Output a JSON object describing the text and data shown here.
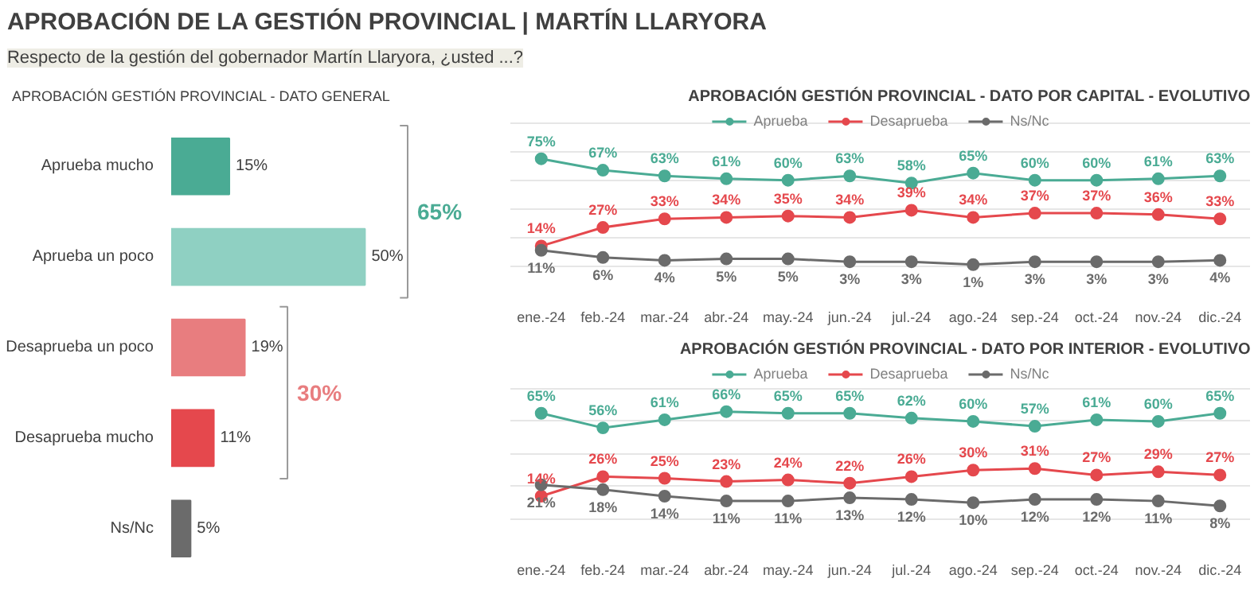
{
  "chart_data": [
    {
      "type": "other",
      "title": "APROBACIÓN DE LA GESTIÓN PROVINCIAL | MARTÍN LLARYORA",
      "subtitle": "Respecto de la gestión del gobernador Martín Llaryora, ¿usted ...?"
    },
    {
      "type": "bar",
      "orientation": "horizontal",
      "title": "APROBACIÓN GESTIÓN PROVINCIAL - DATO GENERAL",
      "categories": [
        "Aprueba mucho",
        "Aprueba un poco",
        "Desaprueba un poco",
        "Desaprueba mucho",
        "Ns/Nc"
      ],
      "values": [
        15,
        50,
        19,
        11,
        5
      ],
      "colors": [
        "#4aab94",
        "#8fd0c2",
        "#e87d7f",
        "#e5484d",
        "#6b6b6b"
      ],
      "value_labels": [
        "15%",
        "50%",
        "19%",
        "11%",
        "5%"
      ],
      "annotations": [
        "65%",
        "30%"
      ],
      "tick_labels": "y"
    },
    {
      "type": "line",
      "title": "APROBACIÓN GESTIÓN PROVINCIAL - DATO POR CAPITAL - EVOLUTIVO",
      "categories": [
        "ene.-24",
        "feb.-24",
        "mar.-24",
        "abr.-24",
        "may.-24",
        "jun.-24",
        "jul.-24",
        "ago.-24",
        "sep.-24",
        "oct.-24",
        "nov.-24",
        "dic.-24"
      ],
      "series": [
        {
          "name": "Aprueba",
          "color": "#4aab94",
          "values": [
            75,
            67,
            63,
            61,
            60,
            63,
            58,
            65,
            60,
            60,
            61,
            63
          ],
          "value_labels": [
            "75%",
            "67%",
            "63%",
            "61%",
            "60%",
            "63%",
            "58%",
            "65%",
            "60%",
            "60%",
            "61%",
            "63%"
          ]
        },
        {
          "name": "Desaprueba",
          "color": "#e5484d",
          "values": [
            14,
            27,
            33,
            34,
            35,
            34,
            39,
            34,
            37,
            37,
            36,
            33
          ],
          "value_labels": [
            "14%",
            "27%",
            "33%",
            "34%",
            "35%",
            "34%",
            "39%",
            "34%",
            "37%",
            "37%",
            "36%",
            "33%"
          ]
        },
        {
          "name": "Ns/Nc",
          "color": "#6b6b6b",
          "values": [
            11,
            6,
            4,
            5,
            5,
            3,
            3,
            1,
            3,
            3,
            3,
            4
          ],
          "value_labels": [
            "11%",
            "6%",
            "4%",
            "5%",
            "5%",
            "3%",
            "3%",
            "1%",
            "3%",
            "3%",
            "3%",
            "4%"
          ]
        }
      ],
      "grid": "y",
      "legend": "top",
      "marker": "circle",
      "tick_labels": "x"
    },
    {
      "type": "line",
      "title": "APROBACIÓN GESTIÓN PROVINCIAL - DATO POR INTERIOR - EVOLUTIVO",
      "categories": [
        "ene.-24",
        "feb.-24",
        "mar.-24",
        "abr.-24",
        "may.-24",
        "jun.-24",
        "jul.-24",
        "ago.-24",
        "sep.-24",
        "oct.-24",
        "nov.-24",
        "dic.-24"
      ],
      "series": [
        {
          "name": "Aprueba",
          "color": "#4aab94",
          "values": [
            65,
            56,
            61,
            66,
            65,
            65,
            62,
            60,
            57,
            61,
            60,
            65
          ],
          "value_labels": [
            "65%",
            "56%",
            "61%",
            "66%",
            "65%",
            "65%",
            "62%",
            "60%",
            "57%",
            "61%",
            "60%",
            "65%"
          ]
        },
        {
          "name": "Desaprueba",
          "color": "#e5484d",
          "values": [
            14,
            26,
            25,
            23,
            24,
            22,
            26,
            30,
            31,
            27,
            29,
            27
          ],
          "value_labels": [
            "14%",
            "26%",
            "25%",
            "23%",
            "24%",
            "22%",
            "26%",
            "30%",
            "31%",
            "27%",
            "29%",
            "27%"
          ]
        },
        {
          "name": "Ns/Nc",
          "color": "#6b6b6b",
          "values": [
            21,
            18,
            14,
            11,
            11,
            13,
            12,
            10,
            12,
            12,
            11,
            8
          ],
          "value_labels": [
            "21%",
            "18%",
            "14%",
            "11%",
            "11%",
            "13%",
            "12%",
            "10%",
            "12%",
            "12%",
            "11%",
            "8%"
          ]
        }
      ],
      "grid": "y",
      "legend": "top",
      "marker": "circle",
      "tick_labels": "x"
    }
  ]
}
